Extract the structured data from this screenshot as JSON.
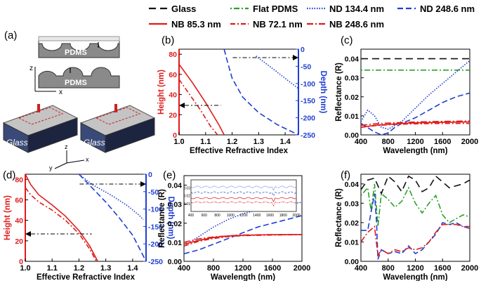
{
  "legend": {
    "items": [
      {
        "label": "Glass",
        "color": "#111111",
        "dash": "10,6"
      },
      {
        "label": "Flat PDMS",
        "color": "#2ca02c",
        "dash": "2,3,8,3"
      },
      {
        "label": "ND 134.4 nm",
        "color": "#1f3fd1",
        "dash": "1.5,2"
      },
      {
        "label": "ND 248.6 nm",
        "color": "#1f3fd1",
        "dash": "8,4"
      },
      {
        "label": "NB 85.3 nm",
        "color": "#e01b1b",
        "dash": ""
      },
      {
        "label": "NB 72.1 nm",
        "color": "#e01b1b",
        "dash": "7,3,2,3"
      },
      {
        "label": "NB 248.6 nm",
        "color": "#e01b1b",
        "dash": "9,3,2,3"
      }
    ]
  },
  "panel_labels": {
    "a": "(a)",
    "b": "(b)",
    "c": "(c)",
    "d": "(d)",
    "e": "(e)",
    "f": "(f)"
  },
  "schematic": {
    "pdms_top": "PDMS",
    "pdms_bottom": "PDMS",
    "axis_z": "z",
    "axis_x": "x",
    "axis_y": "y",
    "glass_left": "Glass",
    "glass_right": "Glass"
  },
  "chart_data": [
    {
      "id": "b",
      "type": "line",
      "xlabel": "Effective Refractive Index",
      "ylabel": "Height (nm)",
      "y2label": "Depth (nm)",
      "xlim": [
        1.0,
        1.45
      ],
      "ylim": [
        0,
        85
      ],
      "y2lim": [
        -250,
        0
      ],
      "xticks": [
        "1.0",
        "1.1",
        "1.2",
        "1.3",
        "1.4"
      ],
      "yticks": [
        "0",
        "20",
        "40",
        "60",
        "80"
      ],
      "y2ticks": [
        "0",
        "-50",
        "-100",
        "-150",
        "-200",
        "-250"
      ],
      "series": [
        {
          "name": "NB 85.3 nm",
          "axis": "left",
          "color": "#e01b1b",
          "dash": "",
          "x": [
            1.0,
            1.05,
            1.1,
            1.15,
            1.17
          ],
          "y": [
            70,
            52,
            32,
            10,
            0
          ]
        },
        {
          "name": "NB 72.1 nm",
          "axis": "left",
          "color": "#e01b1b",
          "dash": "7,3,2,3",
          "x": [
            1.0,
            1.04,
            1.08,
            1.12,
            1.145
          ],
          "y": [
            55,
            40,
            25,
            8,
            0
          ]
        },
        {
          "name": "ND 134.4 nm",
          "axis": "right",
          "color": "#1f3fd1",
          "dash": "1.5,2",
          "x": [
            1.29,
            1.35,
            1.4,
            1.45
          ],
          "y": [
            -20,
            -55,
            -85,
            -115
          ]
        },
        {
          "name": "ND 248.6 nm",
          "axis": "right",
          "color": "#1f3fd1",
          "dash": "8,4",
          "x": [
            1.17,
            1.18,
            1.2,
            1.24,
            1.3,
            1.37,
            1.45
          ],
          "y": [
            0,
            -30,
            -85,
            -140,
            -185,
            -220,
            -250
          ]
        }
      ]
    },
    {
      "id": "c",
      "type": "line",
      "xlabel": "Wavelength (nm)",
      "ylabel": "Reflectance (R)",
      "xlim": [
        400,
        2000
      ],
      "ylim": [
        0,
        0.045
      ],
      "xticks": [
        "400",
        "800",
        "1200",
        "1600",
        "2000"
      ],
      "yticks": [
        "0.00",
        "0.01",
        "0.02",
        "0.03",
        "0.04"
      ],
      "series": [
        {
          "name": "Glass",
          "color": "#111111",
          "dash": "10,6",
          "x": [
            400,
            2000
          ],
          "y": [
            0.04,
            0.04
          ]
        },
        {
          "name": "Flat PDMS",
          "color": "#2ca02c",
          "dash": "2,3,8,3",
          "x": [
            400,
            2000
          ],
          "y": [
            0.034,
            0.034
          ]
        },
        {
          "name": "ND 134.4 nm",
          "color": "#1f3fd1",
          "dash": "1.5,2",
          "x": [
            400,
            500,
            600,
            700,
            800,
            1000,
            1200,
            1400,
            1600,
            1800,
            2000
          ],
          "y": [
            0.007,
            0.013,
            0.01,
            0.004,
            0.003,
            0.007,
            0.014,
            0.021,
            0.027,
            0.033,
            0.039
          ]
        },
        {
          "name": "ND 248.6 nm",
          "color": "#1f3fd1",
          "dash": "8,4",
          "x": [
            400,
            600,
            700,
            800,
            900,
            1000,
            1200,
            1400,
            1600,
            1800,
            2000
          ],
          "y": [
            0.006,
            0.0015,
            0,
            0.001,
            0.004,
            0.006,
            0.009,
            0.013,
            0.017,
            0.02,
            0.022
          ]
        },
        {
          "name": "NB 85.3 nm",
          "color": "#e01b1b",
          "dash": "",
          "x": [
            400,
            600,
            800,
            1000,
            1200,
            1600,
            2000
          ],
          "y": [
            0.004,
            0.005,
            0.0055,
            0.006,
            0.0063,
            0.0066,
            0.0068
          ]
        },
        {
          "name": "NB 72.1 nm",
          "color": "#e01b1b",
          "dash": "7,3,2,3",
          "x": [
            400,
            600,
            800,
            1000,
            1200,
            1600,
            2000
          ],
          "y": [
            0.004,
            0.0048,
            0.0053,
            0.0056,
            0.0058,
            0.006,
            0.006
          ]
        },
        {
          "name": "NB 248.6 nm",
          "color": "#e01b1b",
          "dash": "9,3,2,3",
          "x": [
            400,
            600,
            800,
            1000,
            1200,
            1600,
            2000
          ],
          "y": [
            0.005,
            0.0058,
            0.0062,
            0.0065,
            0.0068,
            0.0071,
            0.0073
          ]
        }
      ]
    },
    {
      "id": "d",
      "type": "line",
      "xlabel": "Effective Refractive Index",
      "ylabel": "Height (nm)",
      "y2label": "Depth (nm)",
      "xlim": [
        1.0,
        1.45
      ],
      "ylim": [
        0,
        85
      ],
      "y2lim": [
        -250,
        0
      ],
      "xticks": [
        "1.0",
        "1.1",
        "1.2",
        "1.3",
        "1.4"
      ],
      "yticks": [
        "0",
        "20",
        "40",
        "60",
        "80"
      ],
      "y2ticks": [
        "0",
        "-50",
        "-100",
        "-150",
        "-200",
        "-250"
      ],
      "series": [
        {
          "name": "NB 85.3 nm",
          "axis": "left",
          "color": "#e01b1b",
          "dash": "",
          "x": [
            1.0,
            1.02,
            1.05,
            1.1,
            1.15,
            1.2,
            1.24,
            1.27
          ],
          "y": [
            85,
            75,
            65,
            55,
            44,
            30,
            15,
            0
          ]
        },
        {
          "name": "NB 72.1 nm",
          "axis": "left",
          "color": "#e01b1b",
          "dash": "7,3,2,3",
          "x": [
            1.0,
            1.02,
            1.05,
            1.1,
            1.15,
            1.2,
            1.24,
            1.265
          ],
          "y": [
            72,
            65,
            58,
            50,
            40,
            27,
            12,
            0
          ]
        },
        {
          "name": "ND 134.4 nm",
          "axis": "right",
          "color": "#1f3fd1",
          "dash": "1.5,2",
          "x": [
            1.2,
            1.25,
            1.32,
            1.38,
            1.42,
            1.44
          ],
          "y": [
            0,
            -30,
            -60,
            -90,
            -115,
            -130
          ]
        },
        {
          "name": "ND 248.6 nm",
          "axis": "right",
          "color": "#1f3fd1",
          "dash": "8,4",
          "x": [
            1.2,
            1.25,
            1.3,
            1.35,
            1.4,
            1.43,
            1.45
          ],
          "y": [
            0,
            -40,
            -80,
            -125,
            -175,
            -220,
            -250
          ]
        }
      ]
    },
    {
      "id": "e",
      "type": "line",
      "xlabel": "Wavelength (nm)",
      "ylabel": "Reflectance (R)",
      "xlim": [
        400,
        2000
      ],
      "ylim": [
        0,
        0.045
      ],
      "xticks": [
        "400",
        "800",
        "1200",
        "1600",
        "2000"
      ],
      "yticks": [
        "0.00",
        "0.01",
        "0.02",
        "0.03",
        "0.04"
      ],
      "inset": {
        "xticks": [
          "400",
          "600",
          "800",
          "1000",
          "1200",
          "1400",
          "1600",
          "1800",
          "2000"
        ],
        "yticks": [
          "0.01",
          "0.02",
          "0.03"
        ]
      },
      "series": [
        {
          "name": "ND 134.4 nm",
          "color": "#1f3fd1",
          "dash": "1.5,2",
          "x": [
            400,
            600,
            800,
            1000,
            1200,
            1400,
            1600,
            1800,
            2000
          ],
          "y": [
            0.008,
            0.013,
            0.018,
            0.022,
            0.025,
            0.027,
            0.029,
            0.03,
            0.031
          ]
        },
        {
          "name": "ND 248.6 nm",
          "color": "#1f3fd1",
          "dash": "8,4",
          "x": [
            400,
            600,
            800,
            1000,
            1200,
            1400,
            1600,
            1800,
            2000
          ],
          "y": [
            0.004,
            0.006,
            0.009,
            0.012,
            0.015,
            0.018,
            0.02,
            0.022,
            0.024
          ]
        },
        {
          "name": "NB 85.3 nm",
          "color": "#e01b1b",
          "dash": "",
          "x": [
            400,
            600,
            800,
            1000,
            1200,
            1600,
            2000
          ],
          "y": [
            0.009,
            0.011,
            0.0125,
            0.0133,
            0.0137,
            0.014,
            0.0141
          ]
        },
        {
          "name": "NB 72.1 nm",
          "color": "#e01b1b",
          "dash": "7,3,2,3",
          "x": [
            400,
            600,
            800,
            1000,
            1200,
            1600,
            2000
          ],
          "y": [
            0.008,
            0.0105,
            0.012,
            0.013,
            0.0135,
            0.0138,
            0.014
          ]
        },
        {
          "name": "NB 248.6 nm",
          "color": "#e01b1b",
          "dash": "9,3,2,3",
          "x": [
            400,
            600,
            800,
            1000,
            1200,
            1600,
            2000
          ],
          "y": [
            0.01,
            0.0118,
            0.0128,
            0.0134,
            0.0138,
            0.014,
            0.0141
          ]
        }
      ]
    },
    {
      "id": "f",
      "type": "line",
      "xlabel": "Wavelength (nm)",
      "ylabel": "Reflectance (R)",
      "xlim": [
        400,
        2000
      ],
      "ylim": [
        0,
        0.045
      ],
      "xticks": [
        "400",
        "800",
        "1200",
        "1600",
        "2000"
      ],
      "yticks": [
        "0.00",
        "0.01",
        "0.02",
        "0.03",
        "0.04"
      ],
      "series": [
        {
          "name": "Glass",
          "color": "#111111",
          "dash": "10,6",
          "x": [
            400,
            500,
            600,
            700,
            800,
            900,
            1000,
            1100,
            1200,
            1300,
            1400,
            1500,
            1600,
            1700,
            1800,
            1900,
            2000
          ],
          "y": [
            0.037,
            0.042,
            0.043,
            0.035,
            0.044,
            0.041,
            0.036,
            0.044,
            0.042,
            0.036,
            0.038,
            0.044,
            0.041,
            0.038,
            0.039,
            0.04,
            0.042
          ]
        },
        {
          "name": "Flat PDMS",
          "color": "#2ca02c",
          "dash": "2,3,8,3",
          "x": [
            400,
            500,
            550,
            600,
            650,
            700,
            800,
            900,
            1000,
            1100,
            1200,
            1300,
            1400,
            1500,
            1600,
            1700,
            1800,
            1900,
            2000
          ],
          "y": [
            0.034,
            0.038,
            0.026,
            0.04,
            0.018,
            0.035,
            0.032,
            0.028,
            0.031,
            0.038,
            0.03,
            0.025,
            0.03,
            0.034,
            0.024,
            0.02,
            0.022,
            0.024,
            0.023
          ]
        },
        {
          "name": "ND 248.6 nm",
          "color": "#1f3fd1",
          "dash": "8,4",
          "x": [
            400,
            500,
            600,
            630,
            650,
            700,
            800,
            900,
            1000,
            1100,
            1200,
            1300,
            1400,
            1500,
            1600,
            1700,
            1800,
            1900,
            2000
          ],
          "y": [
            0.016,
            0.016,
            0.035,
            0.02,
            0.001,
            0.006,
            0.004,
            0.005,
            0.004,
            0.008,
            0.004,
            0.006,
            0.01,
            0.014,
            0.02,
            0.019,
            0.02,
            0.018,
            0.017
          ]
        },
        {
          "name": "NB 248.6 nm",
          "color": "#e01b1b",
          "dash": "9,3,2,3",
          "x": [
            400,
            500,
            600,
            650,
            700,
            800,
            900,
            1000,
            1100,
            1200,
            1300,
            1400,
            1500,
            1600,
            1700,
            1800,
            1900,
            2000
          ],
          "y": [
            0.01,
            0.015,
            0.018,
            0.003,
            0.006,
            0.004,
            0.006,
            0.005,
            0.007,
            0.006,
            0.007,
            0.01,
            0.015,
            0.019,
            0.019,
            0.019,
            0.018,
            0.018
          ]
        }
      ]
    }
  ]
}
